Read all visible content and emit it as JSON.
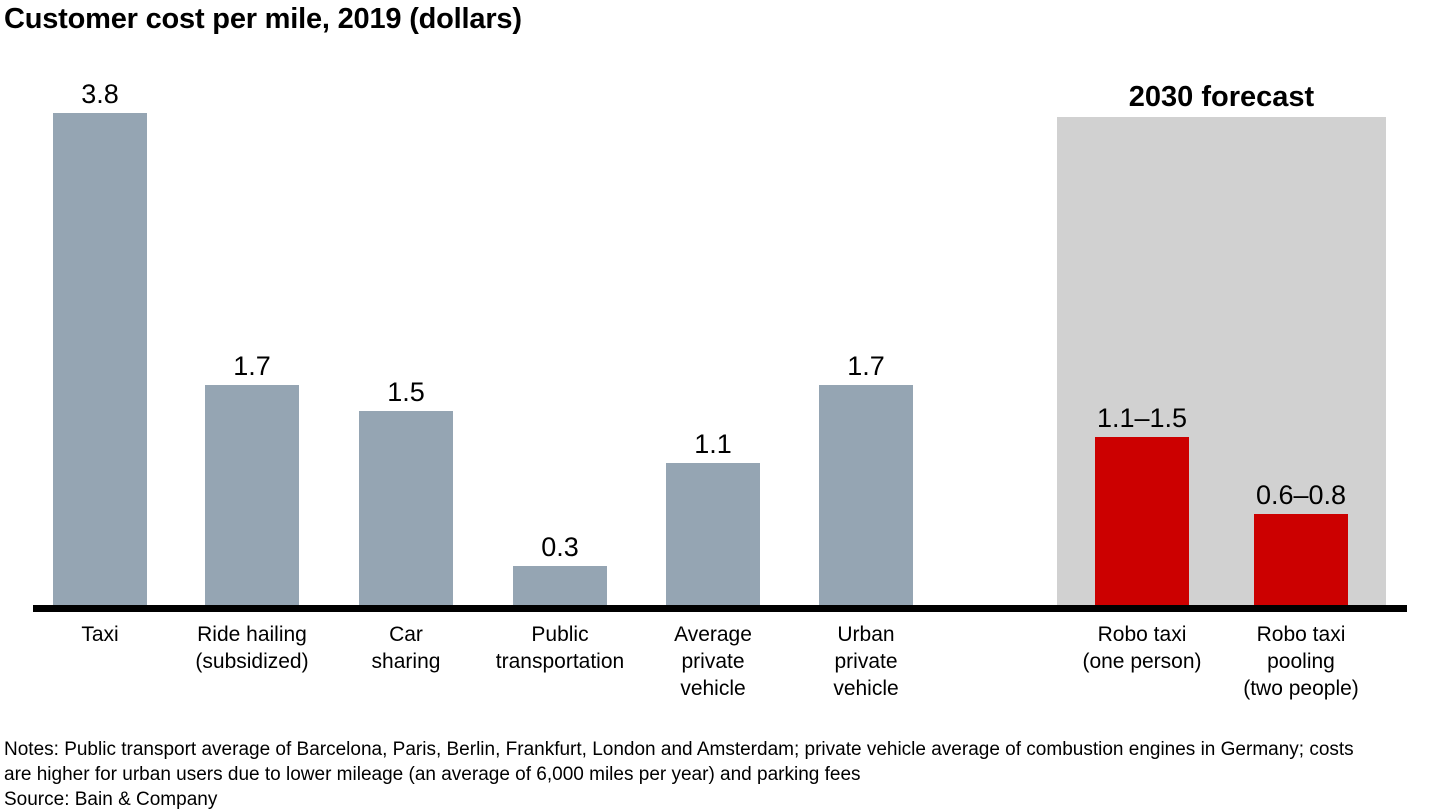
{
  "title": "Customer cost per mile, 2019 (dollars)",
  "notes": "Notes: Public transport average of Barcelona, Paris, Berlin, Frankfurt, London and Amsterdam; private vehicle average of combustion engines in Germany; costs are higher for urban users due to lower mileage (an average of 6,000 miles per year) and parking fees",
  "source": "Source: Bain & Company",
  "colors": {
    "bar_2019": "#95a5b3",
    "bar_forecast": "#cc0000",
    "forecast_bg": "#d1d1d1",
    "axis": "#000000",
    "text": "#000000"
  },
  "chart_data": {
    "type": "bar",
    "title": "Customer cost per mile, 2019 (dollars)",
    "xlabel": "",
    "ylabel": "",
    "ylim": [
      0,
      3.8
    ],
    "grid": false,
    "legend": false,
    "y_axis_shown": false,
    "forecast_label": "2030 forecast",
    "forecast_region_categories": [
      "Robo taxi (one person)",
      "Robo taxi pooling (two people)"
    ],
    "categories": [
      "Taxi",
      "Ride hailing (subsidized)",
      "Car sharing",
      "Public transportation",
      "Average private vehicle",
      "Urban private vehicle",
      "Robo taxi (one person)",
      "Robo taxi pooling (two people)"
    ],
    "bars": [
      {
        "category": "Taxi",
        "label_lines": [
          "Taxi"
        ],
        "value": 3.8,
        "value_label": "3.8",
        "group": "2019"
      },
      {
        "category": "Ride hailing (subsidized)",
        "label_lines": [
          "Ride hailing",
          "(subsidized)"
        ],
        "value": 1.7,
        "value_label": "1.7",
        "group": "2019"
      },
      {
        "category": "Car sharing",
        "label_lines": [
          "Car",
          "sharing"
        ],
        "value": 1.5,
        "value_label": "1.5",
        "group": "2019"
      },
      {
        "category": "Public transportation",
        "label_lines": [
          "Public",
          "transportation"
        ],
        "value": 0.3,
        "value_label": "0.3",
        "group": "2019"
      },
      {
        "category": "Average private vehicle",
        "label_lines": [
          "Average",
          "private",
          "vehicle"
        ],
        "value": 1.1,
        "value_label": "1.1",
        "group": "2019"
      },
      {
        "category": "Urban private vehicle",
        "label_lines": [
          "Urban",
          "private",
          "vehicle"
        ],
        "value": 1.7,
        "value_label": "1.7",
        "group": "2019"
      },
      {
        "category": "Robo taxi (one person)",
        "label_lines": [
          "Robo taxi",
          "(one person)"
        ],
        "value": 1.3,
        "value_range": [
          1.1,
          1.5
        ],
        "value_label": "1.1–1.5",
        "group": "2030 forecast"
      },
      {
        "category": "Robo taxi pooling (two people)",
        "label_lines": [
          "Robo taxi",
          "pooling",
          "(two people)"
        ],
        "value": 0.7,
        "value_range": [
          0.6,
          0.8
        ],
        "value_label": "0.6–0.8",
        "group": "2030 forecast"
      }
    ]
  }
}
